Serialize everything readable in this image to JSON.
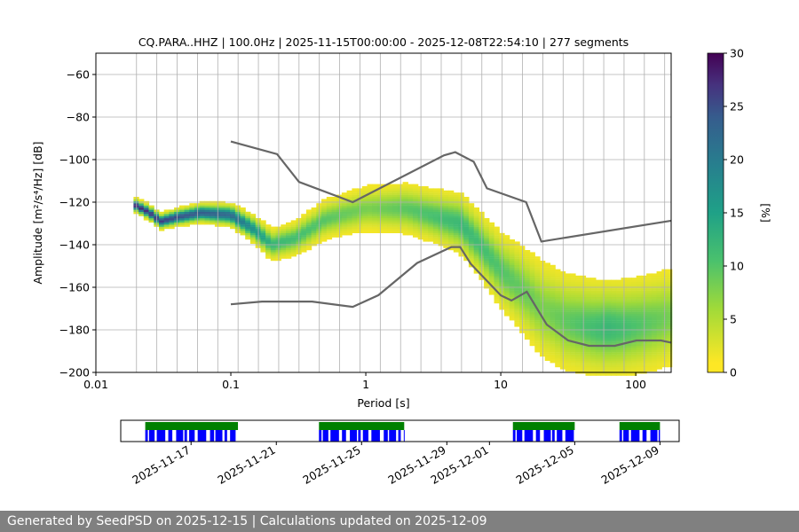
{
  "chart_data": {
    "type": "heatmap",
    "title": "CQ.PARA..HHZ | 100.0Hz | 2025-11-15T00:00:00 - 2025-12-08T22:54:10 | 277 segments",
    "xlabel": "Period [s]",
    "ylabel": "Amplitude [m²/s⁴/Hz] [dB]",
    "xscale": "log",
    "xlim": [
      0.01,
      183
    ],
    "ylim": [
      -200,
      -50
    ],
    "xticks": [
      {
        "v": 0.01,
        "label": "0.01"
      },
      {
        "v": 0.1,
        "label": "0.1"
      },
      {
        "v": 1,
        "label": "1"
      },
      {
        "v": 10,
        "label": "10"
      },
      {
        "v": 100,
        "label": "100"
      }
    ],
    "yticks": [
      -60,
      -80,
      -100,
      -120,
      -140,
      -160,
      -180,
      -200
    ],
    "colorbar": {
      "label": "[%]",
      "range": [
        0,
        30
      ],
      "ticks": [
        0,
        5,
        10,
        15,
        20,
        25,
        30
      ]
    },
    "mode_curve": [
      [
        0.019,
        -121
      ],
      [
        0.025,
        -125
      ],
      [
        0.03,
        -129
      ],
      [
        0.04,
        -127
      ],
      [
        0.06,
        -125
      ],
      [
        0.1,
        -126
      ],
      [
        0.15,
        -133
      ],
      [
        0.2,
        -140
      ],
      [
        0.3,
        -137
      ],
      [
        0.5,
        -128
      ],
      [
        1,
        -123
      ],
      [
        2,
        -123
      ],
      [
        3,
        -126
      ],
      [
        5,
        -130
      ],
      [
        7,
        -140
      ],
      [
        10,
        -152
      ],
      [
        15,
        -162
      ],
      [
        20,
        -170
      ],
      [
        30,
        -176
      ],
      [
        50,
        -179
      ],
      [
        80,
        -179
      ],
      [
        120,
        -177
      ],
      [
        183,
        -174
      ]
    ],
    "spread_db": [
      [
        0.019,
        3
      ],
      [
        0.05,
        4
      ],
      [
        0.1,
        5
      ],
      [
        0.2,
        7
      ],
      [
        1,
        10
      ],
      [
        3,
        12
      ],
      [
        7,
        15
      ],
      [
        20,
        22
      ],
      [
        50,
        22
      ],
      [
        183,
        22
      ]
    ],
    "peak_pct": [
      [
        0.019,
        28
      ],
      [
        0.04,
        25
      ],
      [
        0.1,
        22
      ],
      [
        0.2,
        12
      ],
      [
        1,
        8
      ],
      [
        5,
        12
      ],
      [
        10,
        10
      ],
      [
        20,
        8
      ],
      [
        60,
        12
      ],
      [
        183,
        8
      ]
    ],
    "nhnm": [
      [
        0.1,
        -91.5
      ],
      [
        0.22,
        -97.4
      ],
      [
        0.32,
        -110.5
      ],
      [
        0.8,
        -120
      ],
      [
        3.8,
        -98
      ],
      [
        4.6,
        -96.5
      ],
      [
        6.3,
        -101
      ],
      [
        7.9,
        -113.5
      ],
      [
        15.4,
        -120
      ],
      [
        20,
        -138.5
      ],
      [
        183,
        -128.7
      ]
    ],
    "nlnm": [
      [
        0.1,
        -168
      ],
      [
        0.17,
        -166.7
      ],
      [
        0.4,
        -166.7
      ],
      [
        0.8,
        -169.2
      ],
      [
        1.24,
        -163.7
      ],
      [
        2.4,
        -148.6
      ],
      [
        4.3,
        -141.1
      ],
      [
        5,
        -141.1
      ],
      [
        6,
        -149
      ],
      [
        10,
        -163.8
      ],
      [
        12,
        -166.2
      ],
      [
        15.6,
        -162.1
      ],
      [
        21.9,
        -177.5
      ],
      [
        31.6,
        -185
      ],
      [
        45,
        -187.5
      ],
      [
        70,
        -187.5
      ],
      [
        101,
        -185
      ],
      [
        154,
        -185
      ],
      [
        183,
        -186
      ]
    ],
    "timeline": {
      "range_days_from_2025-11-17": [
        -3.3,
        22.9
      ],
      "ticks": [
        {
          "d": 0,
          "label": "2025-11-17"
        },
        {
          "d": 4,
          "label": "2025-11-21"
        },
        {
          "d": 8,
          "label": "2025-11-25"
        },
        {
          "d": 12,
          "label": "2025-11-29"
        },
        {
          "d": 14,
          "label": "2025-12-01"
        },
        {
          "d": 18,
          "label": "2025-12-05"
        },
        {
          "d": 22,
          "label": "2025-12-09"
        }
      ],
      "coverage_blocks": [
        [
          -2.15,
          2.2
        ],
        [
          6.0,
          10.0
        ],
        [
          15.1,
          18.0
        ],
        [
          20.1,
          22.0
        ]
      ],
      "colors": {
        "data": "#0000ff",
        "psd": "#008000"
      }
    }
  },
  "footer": "Generated by SeedPSD on 2025-12-15 | Calculations updated on 2025-12-09"
}
